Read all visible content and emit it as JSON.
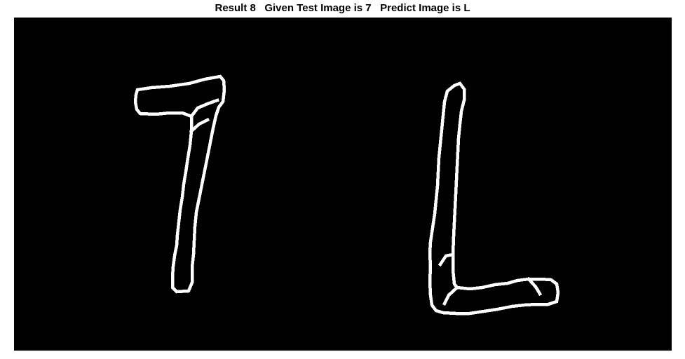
{
  "figure": {
    "title": "Result 8   Given Test Image is 7   Predict Image is L"
  },
  "panel": {
    "background": "#000000",
    "stroke_color": "#ffffff",
    "glyphs": [
      {
        "name": "digit-seven-outline",
        "depicts": "7"
      },
      {
        "name": "letter-l-outline",
        "depicts": "L"
      }
    ]
  }
}
